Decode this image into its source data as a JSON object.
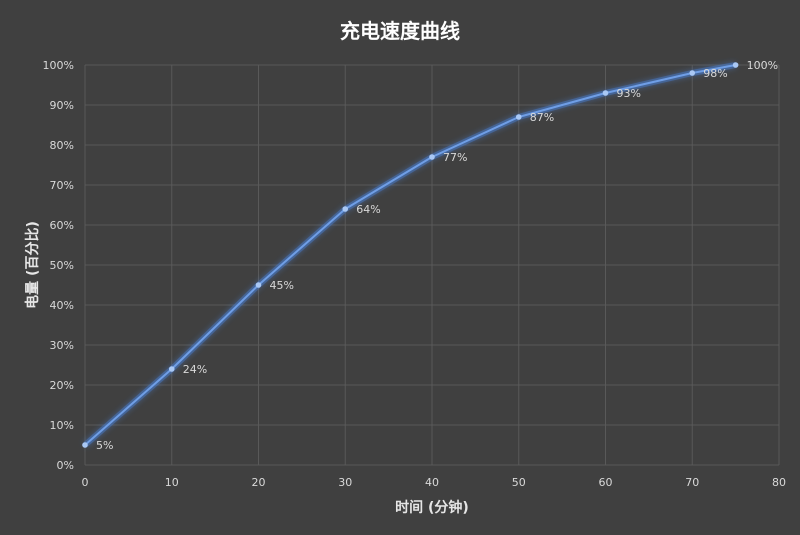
{
  "chart_data": {
    "type": "line",
    "title": "充电速度曲线",
    "xlabel": "时间 (分钟)",
    "ylabel": "电量 (百分比)",
    "xlim": [
      0,
      80
    ],
    "ylim": [
      0,
      100
    ],
    "x_ticks": [
      0,
      10,
      20,
      30,
      40,
      50,
      60,
      70,
      80
    ],
    "y_ticks": [
      "0%",
      "10%",
      "20%",
      "30%",
      "40%",
      "50%",
      "60%",
      "70%",
      "80%",
      "90%",
      "100%"
    ],
    "grid": true,
    "legend": "none",
    "line_color": "#4a7fd0",
    "series": [
      {
        "x": [
          0,
          10,
          20,
          30,
          40,
          50,
          60,
          70,
          75
        ],
        "y": [
          5,
          24,
          45,
          64,
          77,
          87,
          93,
          98,
          100
        ],
        "labels": [
          "5%",
          "24%",
          "45%",
          "64%",
          "77%",
          "87%",
          "93%",
          "98%",
          "100%"
        ]
      }
    ]
  }
}
